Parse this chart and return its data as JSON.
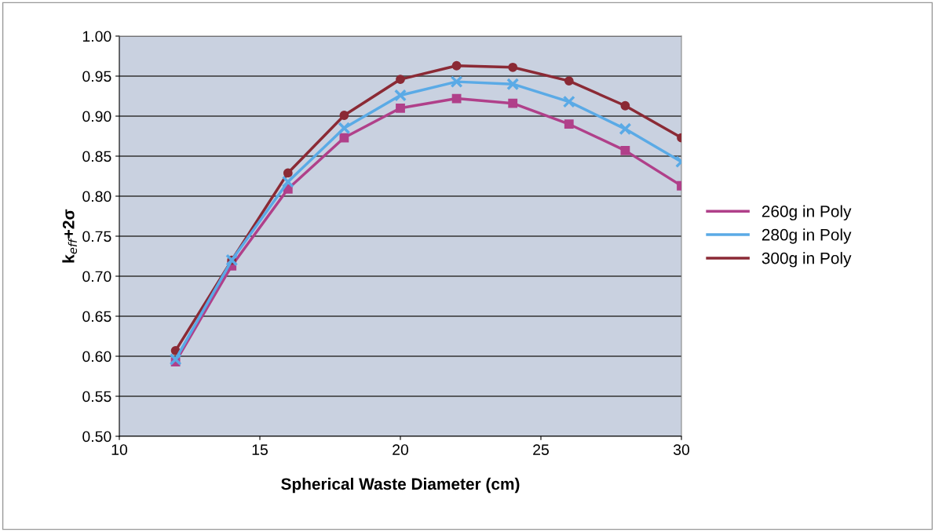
{
  "chart_data": {
    "type": "line",
    "xlabel": "Spherical Waste Diameter (cm)",
    "ylabel": "k$_{eff}$+2σ",
    "x": [
      12,
      14,
      16,
      18,
      20,
      22,
      24,
      26,
      28,
      30
    ],
    "series": [
      {
        "name": "260g in Poly",
        "color": "#b0408a",
        "marker": "square",
        "values": [
          0.593,
          0.713,
          0.809,
          0.873,
          0.91,
          0.922,
          0.916,
          0.89,
          0.857,
          0.813
        ]
      },
      {
        "name": "280g in Poly",
        "color": "#5aaae6",
        "marker": "cross",
        "values": [
          0.596,
          0.72,
          0.818,
          0.885,
          0.926,
          0.943,
          0.94,
          0.918,
          0.884,
          0.843
        ]
      },
      {
        "name": "300g in Poly",
        "color": "#8b2a35",
        "marker": "circle",
        "values": [
          0.607,
          0.72,
          0.829,
          0.901,
          0.946,
          0.963,
          0.961,
          0.944,
          0.913,
          0.873
        ]
      }
    ],
    "xlim": [
      10,
      30
    ],
    "xticks": [
      10,
      15,
      20,
      25,
      30
    ],
    "ylim": [
      0.5,
      1.0
    ],
    "yticks": [
      {
        "value": 0.5,
        "label": "0.50"
      },
      {
        "value": 0.55,
        "label": "0.55"
      },
      {
        "value": 0.6,
        "label": "0.60"
      },
      {
        "value": 0.65,
        "label": "0.65"
      },
      {
        "value": 0.7,
        "label": "0.70"
      },
      {
        "value": 0.75,
        "label": "0.75"
      },
      {
        "value": 0.8,
        "label": "0.80"
      },
      {
        "value": 0.85,
        "label": "0.85"
      },
      {
        "value": 0.9,
        "label": "0.90"
      },
      {
        "value": 0.95,
        "label": "0.95"
      },
      {
        "value": 1.0,
        "label": "1.00"
      }
    ],
    "grid": "y",
    "legend": "right",
    "line_style": "solid"
  }
}
